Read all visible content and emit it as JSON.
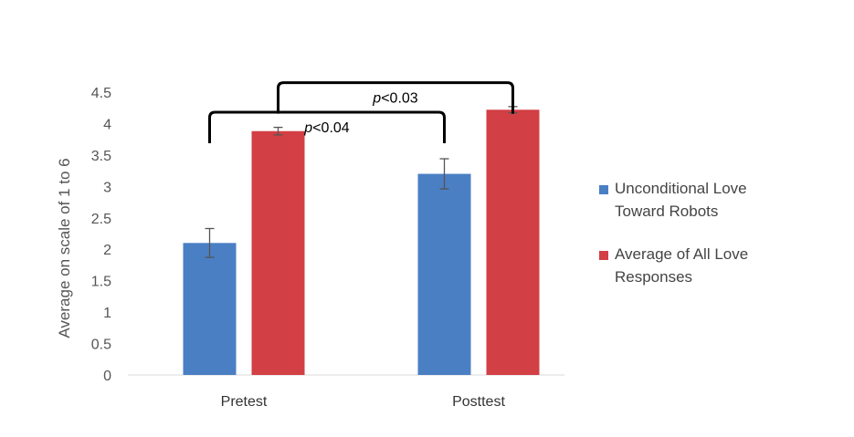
{
  "chart_data": {
    "type": "bar",
    "title": "",
    "xlabel": "",
    "ylabel": "Average on scale of 1 to 6",
    "ylim": [
      0,
      4.5
    ],
    "yticks": [
      "0",
      "0.5",
      "1",
      "1.5",
      "2",
      "2.5",
      "3",
      "3.5",
      "4",
      "4.5"
    ],
    "categories": [
      "Pretest",
      "Posttest"
    ],
    "series": [
      {
        "name": "Unconditional Love Toward Robots",
        "legend_lines": [
          "Unconditional Love",
          "Toward Robots"
        ],
        "color": "#4a7fc4",
        "values": [
          2.1,
          3.2
        ],
        "error": [
          [
            1.87,
            2.33
          ],
          [
            2.96,
            3.44
          ]
        ]
      },
      {
        "name": "Average of All Love Responses",
        "legend_lines": [
          "Average of All Love",
          "Responses"
        ],
        "color": "#d23f45",
        "values": [
          3.88,
          4.22
        ],
        "error": [
          [
            3.82,
            3.94
          ],
          [
            4.17,
            4.27
          ]
        ]
      }
    ],
    "significance": [
      {
        "p": "p",
        "rest": "<0.04",
        "from": [
          0,
          0
        ],
        "to": [
          1,
          0
        ],
        "level": 4.18
      },
      {
        "p": "p",
        "rest": "<0.03",
        "from": [
          0,
          1
        ],
        "to": [
          1,
          1
        ],
        "level": 4.65
      }
    ],
    "grid": false,
    "legend_position": "right"
  }
}
